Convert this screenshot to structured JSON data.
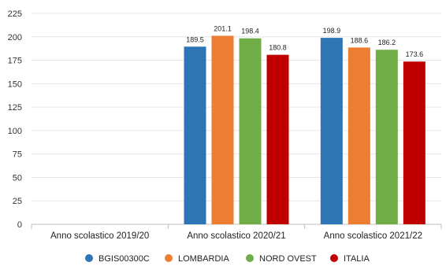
{
  "chart_data": {
    "type": "bar",
    "categories": [
      "Anno scolastico 2019/20",
      "Anno scolastico 2020/21",
      "Anno scolastico 2021/22"
    ],
    "series": [
      {
        "name": "BGIS00300C",
        "color": "#2e75b6",
        "values": [
          null,
          189.5,
          198.9
        ],
        "labels": [
          "",
          "189.5",
          "198.9"
        ]
      },
      {
        "name": "LOMBARDIA",
        "color": "#ed7d31",
        "values": [
          null,
          201.1,
          188.6
        ],
        "labels": [
          "",
          "201.1",
          "188.6"
        ]
      },
      {
        "name": "NORD OVEST",
        "color": "#70ad47",
        "values": [
          null,
          198.4,
          186.2
        ],
        "labels": [
          "",
          "198.4",
          "186.2"
        ]
      },
      {
        "name": "ITALIA",
        "color": "#c00000",
        "values": [
          null,
          180.8,
          173.6
        ],
        "labels": [
          "",
          "180.8",
          "173.6"
        ]
      }
    ],
    "yticks": [
      "0",
      "25",
      "50",
      "75",
      "100",
      "125",
      "150",
      "175",
      "200",
      "225"
    ],
    "ylim": [
      0,
      225
    ],
    "grid": true,
    "legend_position": "bottom"
  }
}
